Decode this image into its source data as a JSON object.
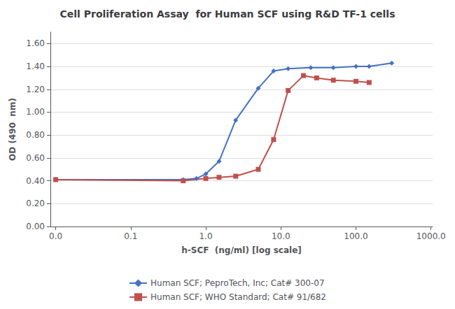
{
  "chart_data": {
    "type": "line",
    "title": "Cell Proliferation Assay  for Human SCF using R&D TF-1 cells",
    "x_label": "h-SCF  (ng/ml) [log scale]",
    "y_label": "OD (490  nm)",
    "log": "x",
    "xlim": [
      0.0085,
      1050.0
    ],
    "xticks": [
      {
        "value": 0.01,
        "label": "0.0"
      },
      0.1,
      {
        "value": 1.0,
        "label": "1.0"
      },
      {
        "value": 10.0,
        "label": "10.0"
      },
      {
        "value": 100.0,
        "label": "100.0"
      },
      {
        "value": 1000.0,
        "label": "1000.0"
      }
    ],
    "ylim": [
      0.0,
      1.7
    ],
    "yticks": [
      {
        "value": 0.0,
        "label": "0.00"
      },
      {
        "value": 0.2,
        "label": "0.20"
      },
      {
        "value": 0.4,
        "label": "0.40"
      },
      {
        "value": 0.6,
        "label": "0.60"
      },
      {
        "value": 0.8,
        "label": "0.80"
      },
      {
        "value": 1.0,
        "label": "1.00"
      },
      {
        "value": 1.2,
        "label": "1.20"
      },
      {
        "value": 1.4,
        "label": "1.40"
      },
      {
        "value": 1.6,
        "label": "1.60"
      }
    ],
    "grid": true,
    "legend": "bottom",
    "series": [
      {
        "name": "Human SCF; PeproTech, Inc; Cat# 300-07",
        "color": "#4472C4",
        "marker": "diamond",
        "line_style": "solid",
        "x": [
          0.01,
          0.5,
          0.75,
          1.0,
          1.5,
          2.5,
          5.0,
          8.0,
          12.5,
          25.0,
          50.0,
          100.0,
          150.0,
          300.0
        ],
        "values": [
          0.41,
          0.41,
          0.42,
          0.46,
          0.57,
          0.93,
          1.21,
          1.36,
          1.38,
          1.39,
          1.39,
          1.4,
          1.4,
          1.43
        ]
      },
      {
        "name": "Human SCF; WHO Standard; Cat# 91/682",
        "color": "#C0504D",
        "marker": "square",
        "line_style": "solid",
        "x": [
          0.01,
          0.5,
          1.0,
          1.5,
          2.5,
          5.0,
          8.0,
          12.5,
          20.0,
          30.0,
          50.0,
          100.0,
          150.0
        ],
        "values": [
          0.41,
          0.4,
          0.42,
          0.43,
          0.44,
          0.5,
          0.76,
          1.19,
          1.32,
          1.3,
          1.28,
          1.27,
          1.26
        ]
      }
    ]
  }
}
